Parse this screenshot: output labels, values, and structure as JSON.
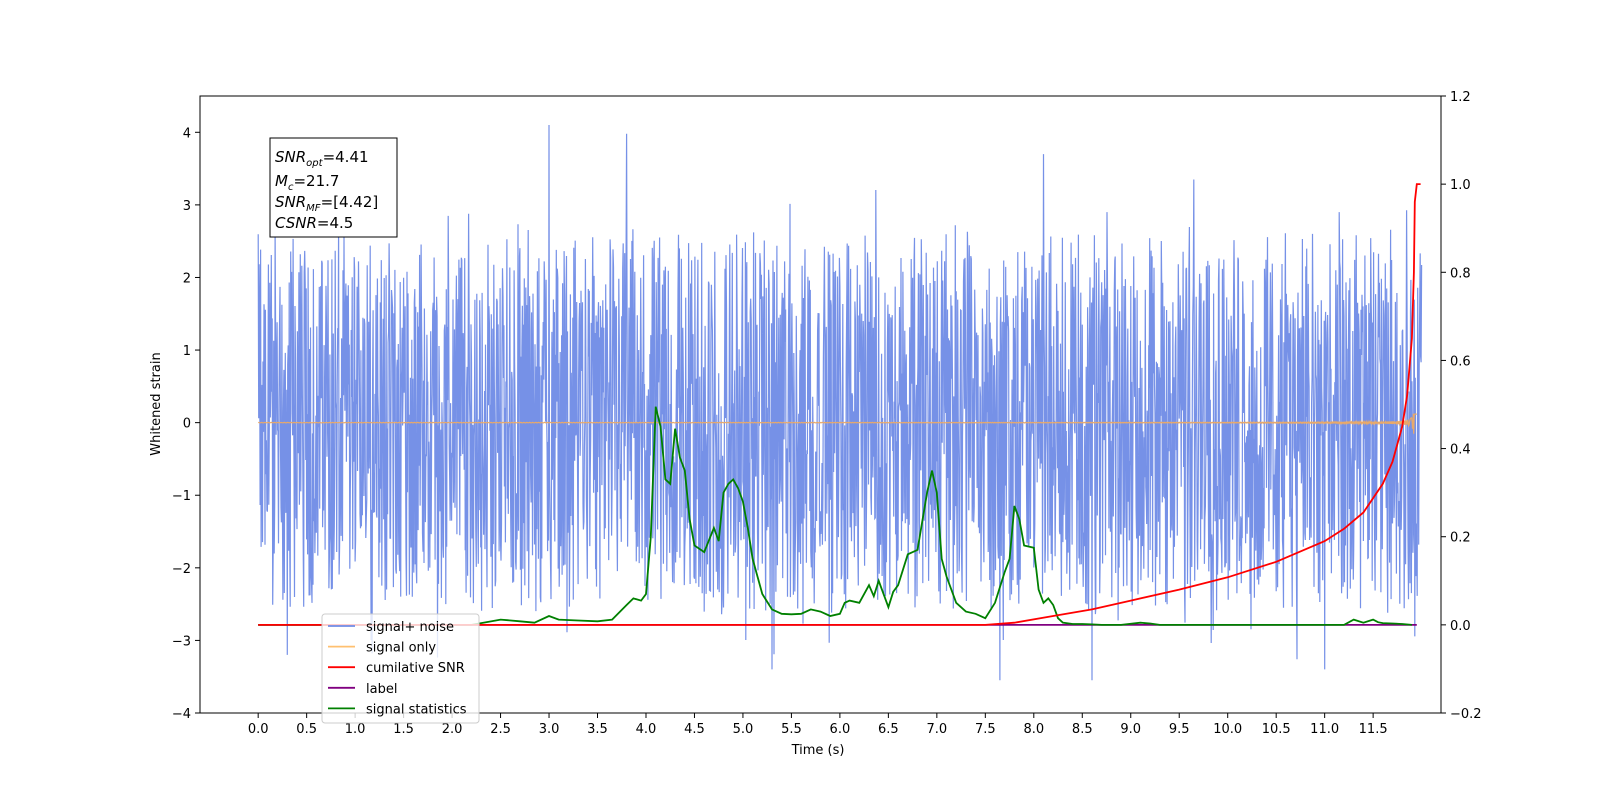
{
  "chart_data": {
    "type": "line",
    "xlabel": "Time (s)",
    "ylabel": "Whitened strain",
    "ylabel_right": "",
    "xlim": [
      -0.6,
      12.2
    ],
    "ylim": [
      -4,
      4.5
    ],
    "ylim_right": [
      -0.2,
      1.2
    ],
    "x_ticks": [
      "0.0",
      "0.5",
      "1.0",
      "1.5",
      "2.0",
      "2.5",
      "3.0",
      "3.5",
      "4.0",
      "4.5",
      "5.0",
      "5.5",
      "6.0",
      "6.5",
      "7.0",
      "7.5",
      "8.0",
      "8.5",
      "9.0",
      "9.5",
      "10.0",
      "10.5",
      "11.0",
      "11.5"
    ],
    "y_ticks_left": [
      "4",
      "3",
      "2",
      "1",
      "0",
      "−1",
      "−2",
      "−3",
      "−4"
    ],
    "y_ticks_right": [
      "1.2",
      "1.0",
      "0.8",
      "0.6",
      "0.4",
      "0.2",
      "0.0",
      "−0.2"
    ],
    "grid": false,
    "legend_position": "lower-left",
    "annotation": {
      "snr_opt": "SNR",
      "snr_opt_sub": "opt",
      "snr_opt_val": "=4.41",
      "mc": "M",
      "mc_sub": "c",
      "mc_val": "=21.7",
      "snr_mf": "SNR",
      "snr_mf_sub": "MF",
      "snr_mf_val": "=[4.42]",
      "csnr": "CSNR",
      "csnr_val": "=4.5"
    },
    "series": [
      {
        "name": "signal+ noise",
        "axis": "left",
        "color": "#6f8be6",
        "kind": "noise",
        "x_range": [
          0,
          12
        ],
        "amplitude_typical": 2.3,
        "extremes": [
          [
            0.3,
            -3.2
          ],
          [
            3.0,
            4.1
          ],
          [
            3.8,
            3.98
          ],
          [
            8.1,
            3.7
          ],
          [
            7.65,
            -3.55
          ],
          [
            8.6,
            -3.55
          ],
          [
            11.0,
            -3.4
          ],
          [
            5.3,
            -3.4
          ],
          [
            9.65,
            3.35
          ],
          [
            11.15,
            2.9
          ]
        ]
      },
      {
        "name": "signal only",
        "axis": "left",
        "color": "#e8a96a",
        "kind": "chirp",
        "x_range": [
          0,
          11.95
        ],
        "peak_time": 11.93,
        "peak_amplitude": 0.85
      },
      {
        "name": "cumilative SNR",
        "axis": "right",
        "x": [
          0,
          7.5,
          7.8,
          8.2,
          8.6,
          9.0,
          9.5,
          10.0,
          10.5,
          11.0,
          11.2,
          11.4,
          11.6,
          11.7,
          11.8,
          11.85,
          11.9,
          11.92,
          11.93,
          11.95,
          11.99
        ],
        "y": [
          0,
          0,
          0.005,
          0.02,
          0.035,
          0.055,
          0.08,
          0.108,
          0.143,
          0.19,
          0.218,
          0.255,
          0.32,
          0.37,
          0.45,
          0.52,
          0.65,
          0.8,
          0.96,
          1.0,
          1.0
        ]
      },
      {
        "name": "label",
        "axis": "right",
        "x": [
          0,
          11.95
        ],
        "y": [
          0,
          0
        ]
      },
      {
        "name": "signal statistics",
        "axis": "right",
        "x": [
          0,
          2.2,
          2.5,
          2.7,
          2.85,
          3.0,
          3.1,
          3.3,
          3.5,
          3.65,
          3.8,
          3.87,
          3.95,
          4.0,
          4.05,
          4.1,
          4.15,
          4.2,
          4.25,
          4.3,
          4.35,
          4.4,
          4.45,
          4.5,
          4.6,
          4.7,
          4.75,
          4.8,
          4.85,
          4.9,
          4.95,
          5.0,
          5.05,
          5.1,
          5.2,
          5.3,
          5.4,
          5.5,
          5.6,
          5.7,
          5.8,
          5.9,
          6.0,
          6.05,
          6.1,
          6.2,
          6.3,
          6.35,
          6.4,
          6.5,
          6.55,
          6.6,
          6.7,
          6.8,
          6.9,
          6.95,
          7.0,
          7.05,
          7.1,
          7.2,
          7.3,
          7.4,
          7.5,
          7.6,
          7.7,
          7.75,
          7.8,
          7.85,
          7.9,
          8.0,
          8.05,
          8.1,
          8.15,
          8.2,
          8.25,
          8.3,
          8.4,
          8.5,
          8.6,
          8.7,
          8.9,
          9.1,
          9.2,
          9.3,
          9.6,
          11.2,
          11.3,
          11.4,
          11.5,
          11.55,
          11.6,
          11.7,
          11.8,
          11.9
        ],
        "y": [
          0,
          0,
          0.012,
          0.008,
          0.005,
          0.02,
          0.012,
          0.01,
          0.008,
          0.012,
          0.045,
          0.06,
          0.055,
          0.07,
          0.2,
          0.495,
          0.45,
          0.33,
          0.32,
          0.445,
          0.38,
          0.35,
          0.24,
          0.18,
          0.165,
          0.22,
          0.19,
          0.3,
          0.32,
          0.33,
          0.31,
          0.28,
          0.22,
          0.15,
          0.07,
          0.035,
          0.025,
          0.024,
          0.025,
          0.035,
          0.03,
          0.02,
          0.025,
          0.05,
          0.055,
          0.05,
          0.09,
          0.065,
          0.1,
          0.04,
          0.075,
          0.09,
          0.16,
          0.17,
          0.3,
          0.35,
          0.3,
          0.15,
          0.11,
          0.05,
          0.03,
          0.025,
          0.015,
          0.05,
          0.12,
          0.15,
          0.27,
          0.24,
          0.18,
          0.175,
          0.08,
          0.05,
          0.06,
          0.045,
          0.015,
          0.005,
          0.002,
          0.002,
          0.001,
          0,
          0,
          0.005,
          0.003,
          0,
          0,
          0,
          0.012,
          0.005,
          0.012,
          0.006,
          0.004,
          0.003,
          0.002,
          0
        ]
      }
    ]
  },
  "colors": {
    "noise": "#6f8be6",
    "signal": "#e8a96a",
    "cumulative": "#ff0000",
    "label": "#800080",
    "statistics": "#008000"
  },
  "legend": {
    "items": [
      {
        "label": "signal+ noise",
        "color": "#6f8be6"
      },
      {
        "label": "signal only",
        "color": "#ffc070"
      },
      {
        "label": "cumilative SNR",
        "color": "#ff0000"
      },
      {
        "label": "label",
        "color": "#800080"
      },
      {
        "label": "signal statistics",
        "color": "#008000"
      }
    ]
  }
}
